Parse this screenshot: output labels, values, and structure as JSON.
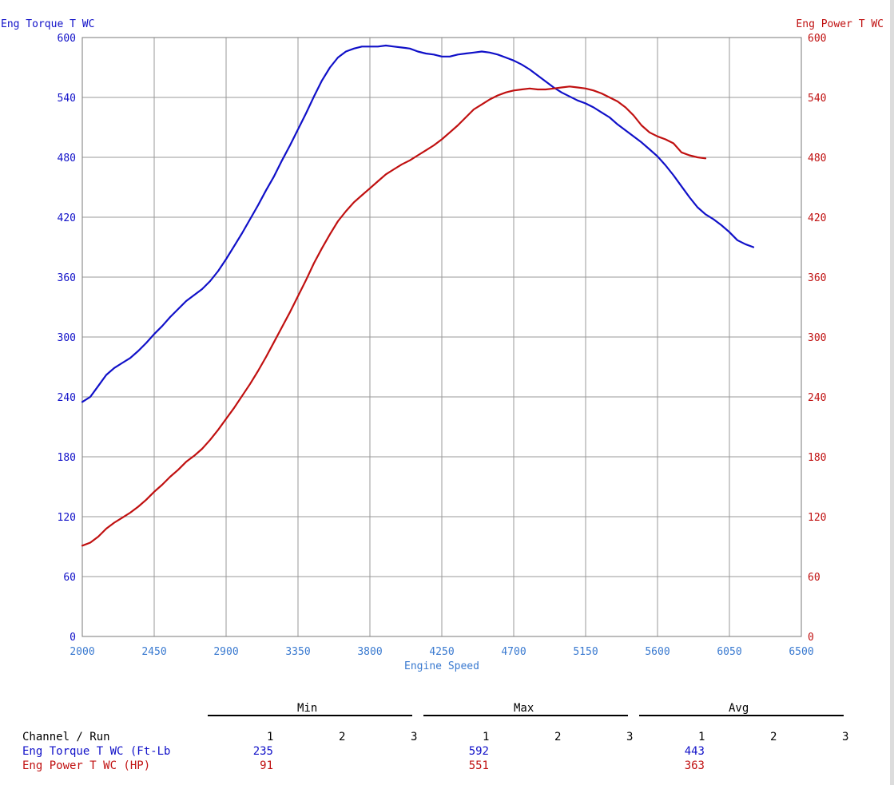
{
  "colors": {
    "torque": "#1010c8",
    "power": "#c01010",
    "xaxis": "#3a7ad0",
    "grid": "#9a9a9a"
  },
  "chart_data": {
    "type": "line",
    "left_axis_title": "Eng Torque T WC",
    "right_axis_title": "Eng Power T WC",
    "xlabel": "Engine Speed",
    "xlim": [
      2000,
      6500
    ],
    "ylim": [
      0,
      600
    ],
    "y2lim": [
      0,
      600
    ],
    "x_ticks": [
      "2000",
      "2450",
      "2900",
      "3350",
      "3800",
      "4250",
      "4700",
      "5150",
      "5600",
      "6050",
      "6500"
    ],
    "y_ticks": [
      "0",
      "60",
      "120",
      "180",
      "240",
      "300",
      "360",
      "420",
      "480",
      "540",
      "600"
    ],
    "grid": true,
    "series": [
      {
        "name": "Eng Torque T WC",
        "axis": "left",
        "points": [
          [
            2000,
            235
          ],
          [
            2050,
            240
          ],
          [
            2100,
            251
          ],
          [
            2150,
            262
          ],
          [
            2200,
            269
          ],
          [
            2250,
            274
          ],
          [
            2300,
            279
          ],
          [
            2350,
            286
          ],
          [
            2400,
            294
          ],
          [
            2450,
            303
          ],
          [
            2500,
            311
          ],
          [
            2550,
            320
          ],
          [
            2600,
            328
          ],
          [
            2650,
            336
          ],
          [
            2700,
            342
          ],
          [
            2750,
            348
          ],
          [
            2800,
            356
          ],
          [
            2850,
            366
          ],
          [
            2900,
            378
          ],
          [
            2950,
            391
          ],
          [
            3000,
            404
          ],
          [
            3050,
            418
          ],
          [
            3100,
            432
          ],
          [
            3150,
            447
          ],
          [
            3200,
            461
          ],
          [
            3250,
            477
          ],
          [
            3300,
            492
          ],
          [
            3350,
            508
          ],
          [
            3400,
            524
          ],
          [
            3450,
            541
          ],
          [
            3500,
            557
          ],
          [
            3550,
            570
          ],
          [
            3600,
            580
          ],
          [
            3650,
            586
          ],
          [
            3700,
            589
          ],
          [
            3750,
            591
          ],
          [
            3800,
            591
          ],
          [
            3850,
            591
          ],
          [
            3900,
            592
          ],
          [
            3950,
            591
          ],
          [
            4000,
            590
          ],
          [
            4050,
            589
          ],
          [
            4100,
            586
          ],
          [
            4150,
            584
          ],
          [
            4200,
            583
          ],
          [
            4250,
            581
          ],
          [
            4300,
            581
          ],
          [
            4350,
            583
          ],
          [
            4400,
            584
          ],
          [
            4450,
            585
          ],
          [
            4500,
            586
          ],
          [
            4550,
            585
          ],
          [
            4600,
            583
          ],
          [
            4650,
            580
          ],
          [
            4700,
            577
          ],
          [
            4750,
            573
          ],
          [
            4800,
            568
          ],
          [
            4850,
            562
          ],
          [
            4900,
            556
          ],
          [
            4950,
            550
          ],
          [
            5000,
            545
          ],
          [
            5050,
            541
          ],
          [
            5100,
            537
          ],
          [
            5150,
            534
          ],
          [
            5200,
            530
          ],
          [
            5250,
            525
          ],
          [
            5300,
            520
          ],
          [
            5350,
            513
          ],
          [
            5400,
            507
          ],
          [
            5450,
            501
          ],
          [
            5500,
            495
          ],
          [
            5550,
            488
          ],
          [
            5600,
            481
          ],
          [
            5650,
            472
          ],
          [
            5700,
            462
          ],
          [
            5750,
            451
          ],
          [
            5800,
            440
          ],
          [
            5850,
            430
          ],
          [
            5900,
            423
          ],
          [
            5950,
            418
          ],
          [
            6000,
            412
          ],
          [
            6050,
            405
          ],
          [
            6100,
            397
          ],
          [
            6150,
            393
          ],
          [
            6200,
            390
          ]
        ]
      },
      {
        "name": "Eng Power T WC",
        "axis": "right",
        "points": [
          [
            2000,
            91
          ],
          [
            2050,
            94
          ],
          [
            2100,
            100
          ],
          [
            2150,
            108
          ],
          [
            2200,
            114
          ],
          [
            2250,
            119
          ],
          [
            2300,
            124
          ],
          [
            2350,
            130
          ],
          [
            2400,
            137
          ],
          [
            2450,
            145
          ],
          [
            2500,
            152
          ],
          [
            2550,
            160
          ],
          [
            2600,
            167
          ],
          [
            2650,
            175
          ],
          [
            2700,
            181
          ],
          [
            2750,
            188
          ],
          [
            2800,
            197
          ],
          [
            2850,
            207
          ],
          [
            2900,
            218
          ],
          [
            2950,
            229
          ],
          [
            3000,
            241
          ],
          [
            3050,
            253
          ],
          [
            3100,
            266
          ],
          [
            3150,
            280
          ],
          [
            3200,
            295
          ],
          [
            3250,
            310
          ],
          [
            3300,
            325
          ],
          [
            3350,
            341
          ],
          [
            3400,
            357
          ],
          [
            3450,
            374
          ],
          [
            3500,
            389
          ],
          [
            3550,
            403
          ],
          [
            3600,
            416
          ],
          [
            3650,
            426
          ],
          [
            3700,
            435
          ],
          [
            3750,
            442
          ],
          [
            3800,
            449
          ],
          [
            3850,
            456
          ],
          [
            3900,
            463
          ],
          [
            3950,
            468
          ],
          [
            4000,
            473
          ],
          [
            4050,
            477
          ],
          [
            4100,
            482
          ],
          [
            4150,
            487
          ],
          [
            4200,
            492
          ],
          [
            4250,
            498
          ],
          [
            4300,
            505
          ],
          [
            4350,
            512
          ],
          [
            4400,
            520
          ],
          [
            4450,
            528
          ],
          [
            4500,
            533
          ],
          [
            4550,
            538
          ],
          [
            4600,
            542
          ],
          [
            4650,
            545
          ],
          [
            4700,
            547
          ],
          [
            4750,
            548
          ],
          [
            4800,
            549
          ],
          [
            4850,
            548
          ],
          [
            4900,
            548
          ],
          [
            4950,
            549
          ],
          [
            5000,
            550
          ],
          [
            5050,
            551
          ],
          [
            5100,
            550
          ],
          [
            5150,
            549
          ],
          [
            5200,
            547
          ],
          [
            5250,
            544
          ],
          [
            5300,
            540
          ],
          [
            5350,
            536
          ],
          [
            5400,
            530
          ],
          [
            5450,
            522
          ],
          [
            5500,
            512
          ],
          [
            5550,
            505
          ],
          [
            5600,
            501
          ],
          [
            5650,
            498
          ],
          [
            5700,
            494
          ],
          [
            5750,
            485
          ],
          [
            5800,
            482
          ],
          [
            5850,
            480
          ],
          [
            5900,
            479
          ]
        ]
      }
    ]
  },
  "stats_table": {
    "groups": [
      "Min",
      "Max",
      "Avg"
    ],
    "channel_header": "Channel / Run",
    "runs": [
      "1",
      "2",
      "3"
    ],
    "rows": [
      {
        "channel": "Eng Torque T WC (Ft-Lb",
        "min": "235",
        "max": "592",
        "avg": "443"
      },
      {
        "channel": "Eng Power T WC (HP)",
        "min": "91",
        "max": "551",
        "avg": "363"
      }
    ]
  }
}
